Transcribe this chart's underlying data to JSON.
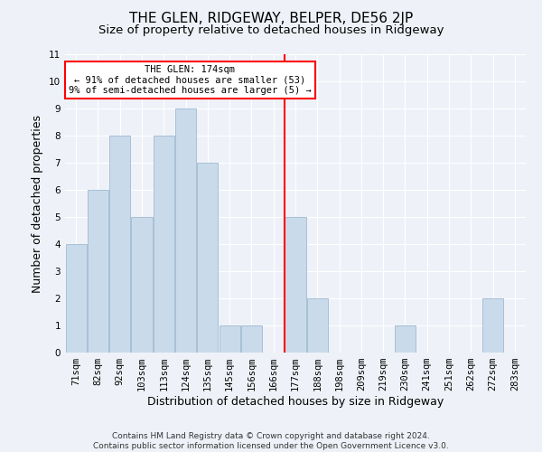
{
  "title": "THE GLEN, RIDGEWAY, BELPER, DE56 2JP",
  "subtitle": "Size of property relative to detached houses in Ridgeway",
  "xlabel": "Distribution of detached houses by size in Ridgeway",
  "ylabel": "Number of detached properties",
  "categories": [
    "71sqm",
    "82sqm",
    "92sqm",
    "103sqm",
    "113sqm",
    "124sqm",
    "135sqm",
    "145sqm",
    "156sqm",
    "166sqm",
    "177sqm",
    "188sqm",
    "198sqm",
    "209sqm",
    "219sqm",
    "230sqm",
    "241sqm",
    "251sqm",
    "262sqm",
    "272sqm",
    "283sqm"
  ],
  "values": [
    4,
    6,
    8,
    5,
    8,
    9,
    7,
    1,
    1,
    0,
    5,
    2,
    0,
    0,
    0,
    1,
    0,
    0,
    0,
    2,
    0
  ],
  "bar_color": "#c9daea",
  "bar_edge_color": "#a8c0d6",
  "vline_index": 10,
  "annotation_line1": "THE GLEN: 174sqm",
  "annotation_line2": "← 91% of detached houses are smaller (53)",
  "annotation_line3": "9% of semi-detached houses are larger (5) →",
  "annotation_box_color": "white",
  "annotation_box_edge": "red",
  "vline_color": "red",
  "ylim": [
    0,
    11
  ],
  "yticks": [
    0,
    1,
    2,
    3,
    4,
    5,
    6,
    7,
    8,
    9,
    10,
    11
  ],
  "footer": "Contains HM Land Registry data © Crown copyright and database right 2024.\nContains public sector information licensed under the Open Government Licence v3.0.",
  "background_color": "#eef2f8",
  "grid_color": "#ffffff",
  "title_fontsize": 11,
  "subtitle_fontsize": 9.5,
  "tick_fontsize": 7.5,
  "ylabel_fontsize": 9,
  "xlabel_fontsize": 9,
  "footer_fontsize": 6.5
}
